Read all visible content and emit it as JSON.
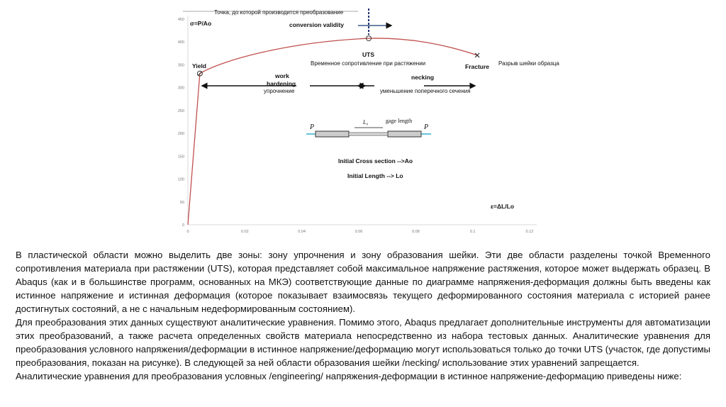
{
  "chart_data": {
    "type": "line",
    "xlim": [
      0,
      0.12
    ],
    "ylim": [
      0,
      450
    ],
    "xticks": [
      "0",
      "0.02",
      "0.04",
      "0.06",
      "0.08",
      "0.1",
      "0.12"
    ],
    "yticks": [
      "0",
      "50",
      "100",
      "150",
      "200",
      "250",
      "300",
      "350",
      "400",
      "450"
    ],
    "ylabel": "σ=P/Ao",
    "xlabel": "ε=ΔL/Lo",
    "grid": false,
    "line_color": "#c0504d",
    "points": {
      "x": [
        0,
        0.0042,
        0.02,
        0.04,
        0.0635,
        0.08,
        0.1016
      ],
      "y": [
        0,
        331,
        375,
        398,
        408,
        400,
        371
      ]
    },
    "annotations": {
      "conversion_note": "Точка, до которой производится преобразование",
      "conversion_validity": "conversion validity",
      "uts": "UTS",
      "uts_ru": "Временное сопротивление при растяжении",
      "yield": "Yield",
      "fracture": "Fracture",
      "fracture_ru": "Разрыв шейки образца",
      "work_hardening_1": "work",
      "work_hardening_2": "hardening",
      "work_hardening_ru": "упрочнение",
      "necking": "necking",
      "necking_ru": "уменьшение поперечного сечения",
      "gage_length": "gage length",
      "l0": "L₀",
      "p_left": "P",
      "p_right": "P",
      "cross_section": "Initial Cross section -->Ao",
      "initial_length": "Initial Length --> Lo"
    }
  },
  "body": {
    "paragraphs": [
      "В пластической области можно выделить две зоны: зону упрочнения и зону образования шейки. Эти две области разделены точкой Временного сопротивления материала при растяжении (UTS), которая представляет собой максимальное напряжение растяжения, которое может выдержать образец. В Abaqus (как и в большинстве программ, основанных на МКЭ) соответствующие данные по диаграмме напряжения-деформация должны быть введены как истинное напряжение и истинная деформация (которое показывает взаимосвязь текущего деформированного состояния материала с историей ранее достигнутых состояний, а не с начальным недеформированным состоянием).",
      "Для преобразования этих данных существуют аналитические уравнения. Помимо этого, Abaqus предлагает дополнительные инструменты для автоматизации этих преобразований, а также расчета определенных свойств материала непосредственно из набора тестовых данных. Аналитические уравнения для преобразования условного напряжения/деформации в истинное напряжение/деформацию могут использоваться только до точки UTS (участок, где допустимы преобразования, показан на рисунке). В следующей за ней области образования шейки /necking/ использование этих уравнений запрещается.",
      "Аналитические уравнения для преобразования условных /engineering/ напряжения-деформации в истинное напряжение-деформацию приведены ниже:"
    ]
  }
}
